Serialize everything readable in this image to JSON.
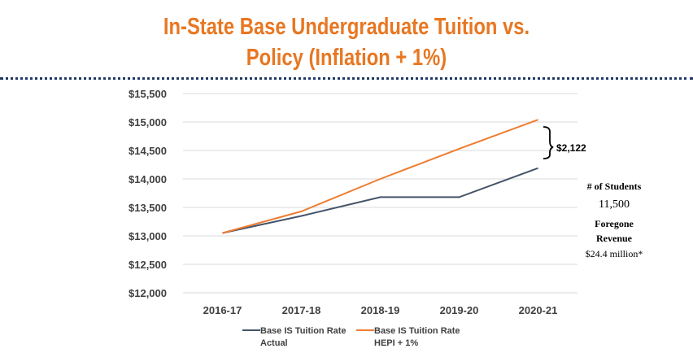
{
  "title_line1": "In-State Base Undergraduate Tuition vs.",
  "title_line2": "Policy (Inflation + 1%)",
  "chart_data": {
    "type": "line",
    "categories": [
      "2016-17",
      "2017-18",
      "2018-19",
      "2019-20",
      "2020-21"
    ],
    "ylim": [
      12000,
      15500
    ],
    "yticks": [
      12000,
      12500,
      13000,
      13500,
      14000,
      14500,
      15000,
      15500
    ],
    "ytick_labels": [
      "$12,000",
      "$12,500",
      "$13,000",
      "$13,500",
      "$14,000",
      "$14,500",
      "$15,000",
      "$15,500"
    ],
    "grid": true,
    "legend": "bottom",
    "series": [
      {
        "name": "Base IS Tuition Rate Actual",
        "name_line1": "Base IS Tuition Rate",
        "name_line2": "Actual",
        "color": "#44546A",
        "values": [
          13050,
          13350,
          13680,
          13680,
          14190
        ]
      },
      {
        "name": "Base IS Tuition Rate HEPI + 1%",
        "name_line1": "Base IS Tuition Rate",
        "name_line2": "HEPI + 1%",
        "color": "#ED7D31",
        "values": [
          13050,
          13430,
          14000,
          14530,
          15040
        ]
      }
    ],
    "annotation": "$2,122"
  },
  "side": {
    "students_label": "# of Students",
    "students_value": "11,500",
    "foregone_line1": "Foregone",
    "foregone_line2": "Revenue",
    "foregone_value": "$24.4 million*"
  }
}
